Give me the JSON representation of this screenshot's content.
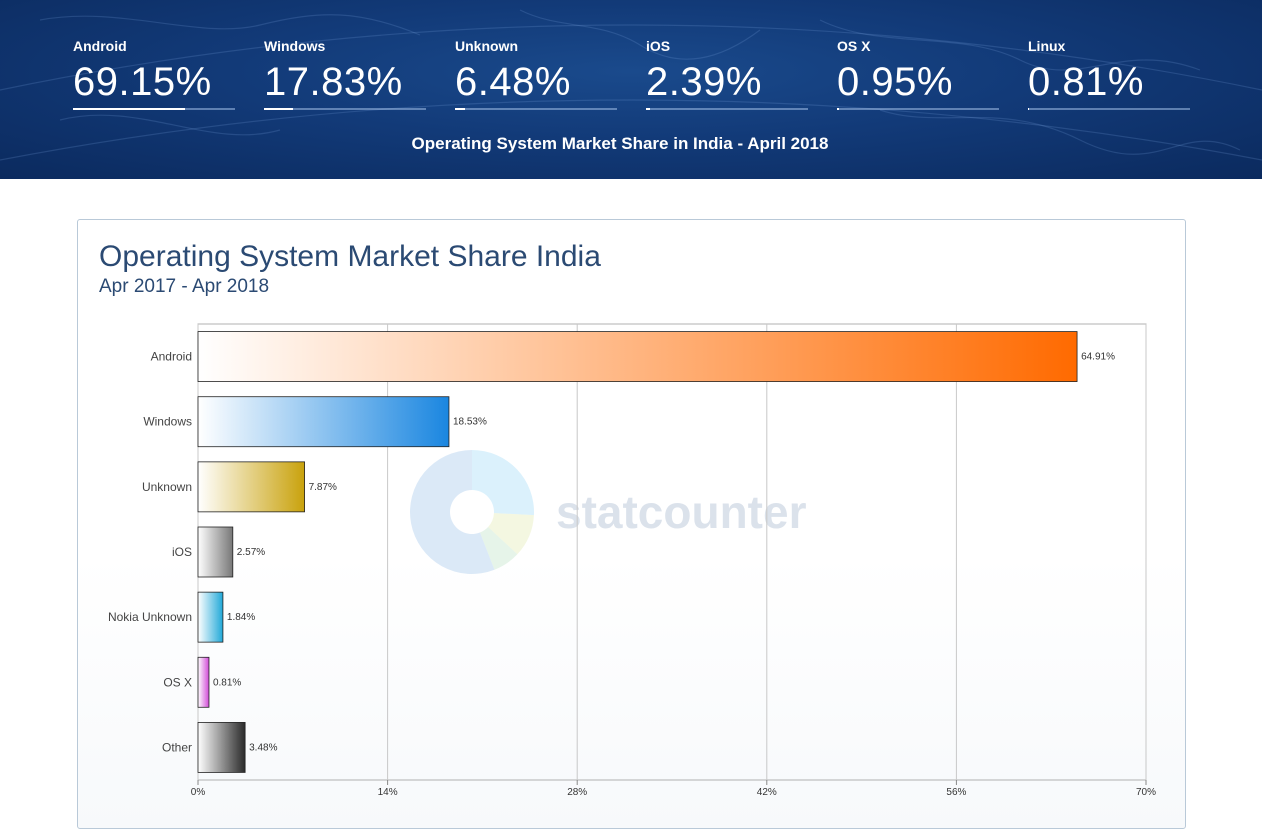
{
  "banner": {
    "stats": [
      {
        "name": "Android",
        "value": "69.15%",
        "share": 69.15
      },
      {
        "name": "Windows",
        "value": "17.83%",
        "share": 17.83
      },
      {
        "name": "Unknown",
        "value": "6.48%",
        "share": 6.48
      },
      {
        "name": "iOS",
        "value": "2.39%",
        "share": 2.39
      },
      {
        "name": "OS X",
        "value": "0.95%",
        "share": 0.95
      },
      {
        "name": "Linux",
        "value": "0.81%",
        "share": 0.81
      }
    ],
    "caption": "Operating System Market Share in India - April 2018",
    "colors": {
      "background": "#123a78",
      "text": "#ffffff"
    }
  },
  "card": {
    "title": "Operating System Market Share India",
    "subtitle": "Apr 2017 - Apr 2018"
  },
  "watermark": {
    "text": "statcounter",
    "icon": "statcounter-pie-logo"
  },
  "chart_data": {
    "type": "bar",
    "orientation": "horizontal",
    "categories": [
      "Android",
      "Windows",
      "Unknown",
      "iOS",
      "Nokia Unknown",
      "OS X",
      "Other"
    ],
    "values": [
      64.91,
      18.53,
      7.87,
      2.57,
      1.84,
      0.81,
      3.48
    ],
    "value_labels": [
      "64.91%",
      "18.53%",
      "7.87%",
      "2.57%",
      "1.84%",
      "0.81%",
      "3.48%"
    ],
    "colors": [
      "#ff6a00",
      "#1a86e0",
      "#c9a20c",
      "#777777",
      "#20a8d8",
      "#d24ad8",
      "#2a2a2a"
    ],
    "xlim": [
      0,
      70
    ],
    "xticks": [
      0,
      14,
      28,
      42,
      56,
      70
    ],
    "xtick_labels": [
      "0%",
      "14%",
      "28%",
      "42%",
      "56%",
      "70%"
    ],
    "grid": true,
    "legend": "none"
  }
}
